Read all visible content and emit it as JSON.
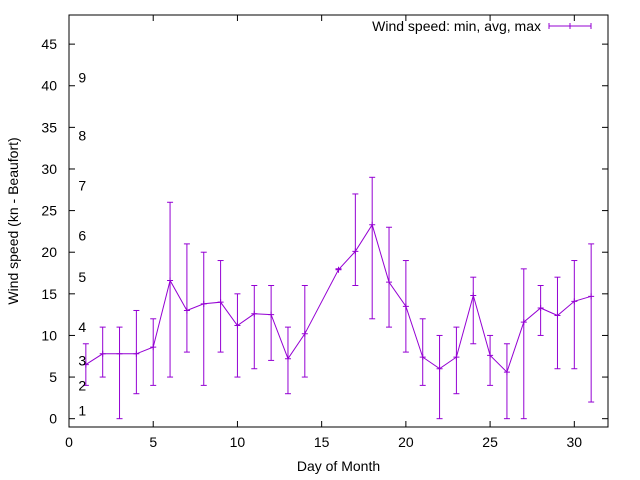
{
  "chart_data": {
    "type": "line",
    "title": "",
    "xlabel": "Day of Month",
    "ylabel": "Wind speed (kn - Beaufort)",
    "xlim": [
      0,
      32
    ],
    "ylim": [
      -1,
      48.5
    ],
    "xticks": [
      0,
      5,
      10,
      15,
      20,
      25,
      30
    ],
    "yticks": [
      0,
      5,
      10,
      15,
      20,
      25,
      30,
      35,
      40,
      45
    ],
    "grid": false,
    "legend": "top-right",
    "color": "#9400D3",
    "series": [
      {
        "name": "Wind speed: min, avg, max",
        "points": [
          {
            "x": 1,
            "avg": 6.5,
            "min": 4,
            "max": 9
          },
          {
            "x": 2,
            "avg": 7.8,
            "min": 5,
            "max": 11
          },
          {
            "x": 3,
            "avg": 7.8,
            "min": 0,
            "max": 11
          },
          {
            "x": 4,
            "avg": 7.8,
            "min": 3,
            "max": 13
          },
          {
            "x": 5,
            "avg": 8.6,
            "min": 4,
            "max": 12
          },
          {
            "x": 6,
            "avg": 16.6,
            "min": 5,
            "max": 26
          },
          {
            "x": 7,
            "avg": 13.0,
            "min": 8,
            "max": 21
          },
          {
            "x": 8,
            "avg": 13.8,
            "min": 4,
            "max": 20
          },
          {
            "x": 9,
            "avg": 14.0,
            "min": 8,
            "max": 19
          },
          {
            "x": 10,
            "avg": 11.2,
            "min": 5,
            "max": 15
          },
          {
            "x": 11,
            "avg": 12.6,
            "min": 6,
            "max": 16
          },
          {
            "x": 12,
            "avg": 12.5,
            "min": 7,
            "max": 16
          },
          {
            "x": 13,
            "avg": 7.2,
            "min": 3,
            "max": 11
          },
          {
            "x": 14,
            "avg": 10.2,
            "min": 5,
            "max": 16
          },
          {
            "x": 16,
            "avg": 17.9,
            "min": 18,
            "max": 18
          },
          {
            "x": 17,
            "avg": 20.1,
            "min": 16,
            "max": 27
          },
          {
            "x": 18,
            "avg": 23.3,
            "min": 12,
            "max": 29
          },
          {
            "x": 19,
            "avg": 16.4,
            "min": 11,
            "max": 23
          },
          {
            "x": 20,
            "avg": 13.5,
            "min": 8,
            "max": 19
          },
          {
            "x": 21,
            "avg": 7.4,
            "min": 4,
            "max": 12
          },
          {
            "x": 22,
            "avg": 6.0,
            "min": 0,
            "max": 10
          },
          {
            "x": 23,
            "avg": 7.4,
            "min": 3,
            "max": 11
          },
          {
            "x": 24,
            "avg": 14.8,
            "min": 9,
            "max": 17
          },
          {
            "x": 25,
            "avg": 7.6,
            "min": 4,
            "max": 10
          },
          {
            "x": 26,
            "avg": 5.6,
            "min": 0,
            "max": 9
          },
          {
            "x": 27,
            "avg": 11.6,
            "min": 0,
            "max": 18
          },
          {
            "x": 28,
            "avg": 13.3,
            "min": 10,
            "max": 16
          },
          {
            "x": 29,
            "avg": 12.4,
            "min": 6,
            "max": 17
          },
          {
            "x": 30,
            "avg": 14.1,
            "min": 6,
            "max": 19
          },
          {
            "x": 31,
            "avg": 14.7,
            "min": 2,
            "max": 21
          }
        ]
      }
    ],
    "annotations": [
      {
        "text": "1",
        "x": 0.5,
        "y": 1
      },
      {
        "text": "2",
        "x": 0.5,
        "y": 4
      },
      {
        "text": "3",
        "x": 0.5,
        "y": 7
      },
      {
        "text": "4",
        "x": 0.5,
        "y": 11
      },
      {
        "text": "5",
        "x": 0.5,
        "y": 17
      },
      {
        "text": "6",
        "x": 0.5,
        "y": 22
      },
      {
        "text": "7",
        "x": 0.5,
        "y": 28
      },
      {
        "text": "8",
        "x": 0.5,
        "y": 34
      },
      {
        "text": "9",
        "x": 0.5,
        "y": 41
      }
    ]
  }
}
